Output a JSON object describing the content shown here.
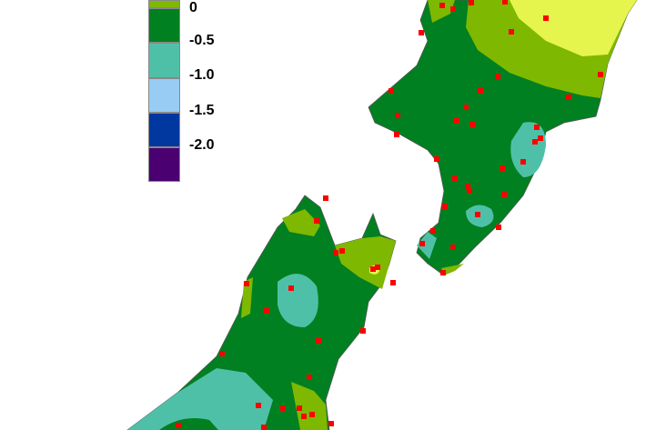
{
  "legend": {
    "colors": [
      "#7fb800",
      "#008020",
      "#4fc0a8",
      "#98ccf4",
      "#0038a0",
      "#4a0070"
    ],
    "labels": [
      "0",
      "-0.5",
      "-1.0",
      "-1.5",
      "-2.0"
    ]
  },
  "map": {
    "land_colors": {
      "above_0": "#e6f44e",
      "0_to_-0.5": "#7fb800",
      "-0.5_to_-1.0": "#008020",
      "-1.0_to_-1.5": "#4fc0a8"
    },
    "station_color": "#ff0000",
    "coast_color": "#555555"
  }
}
